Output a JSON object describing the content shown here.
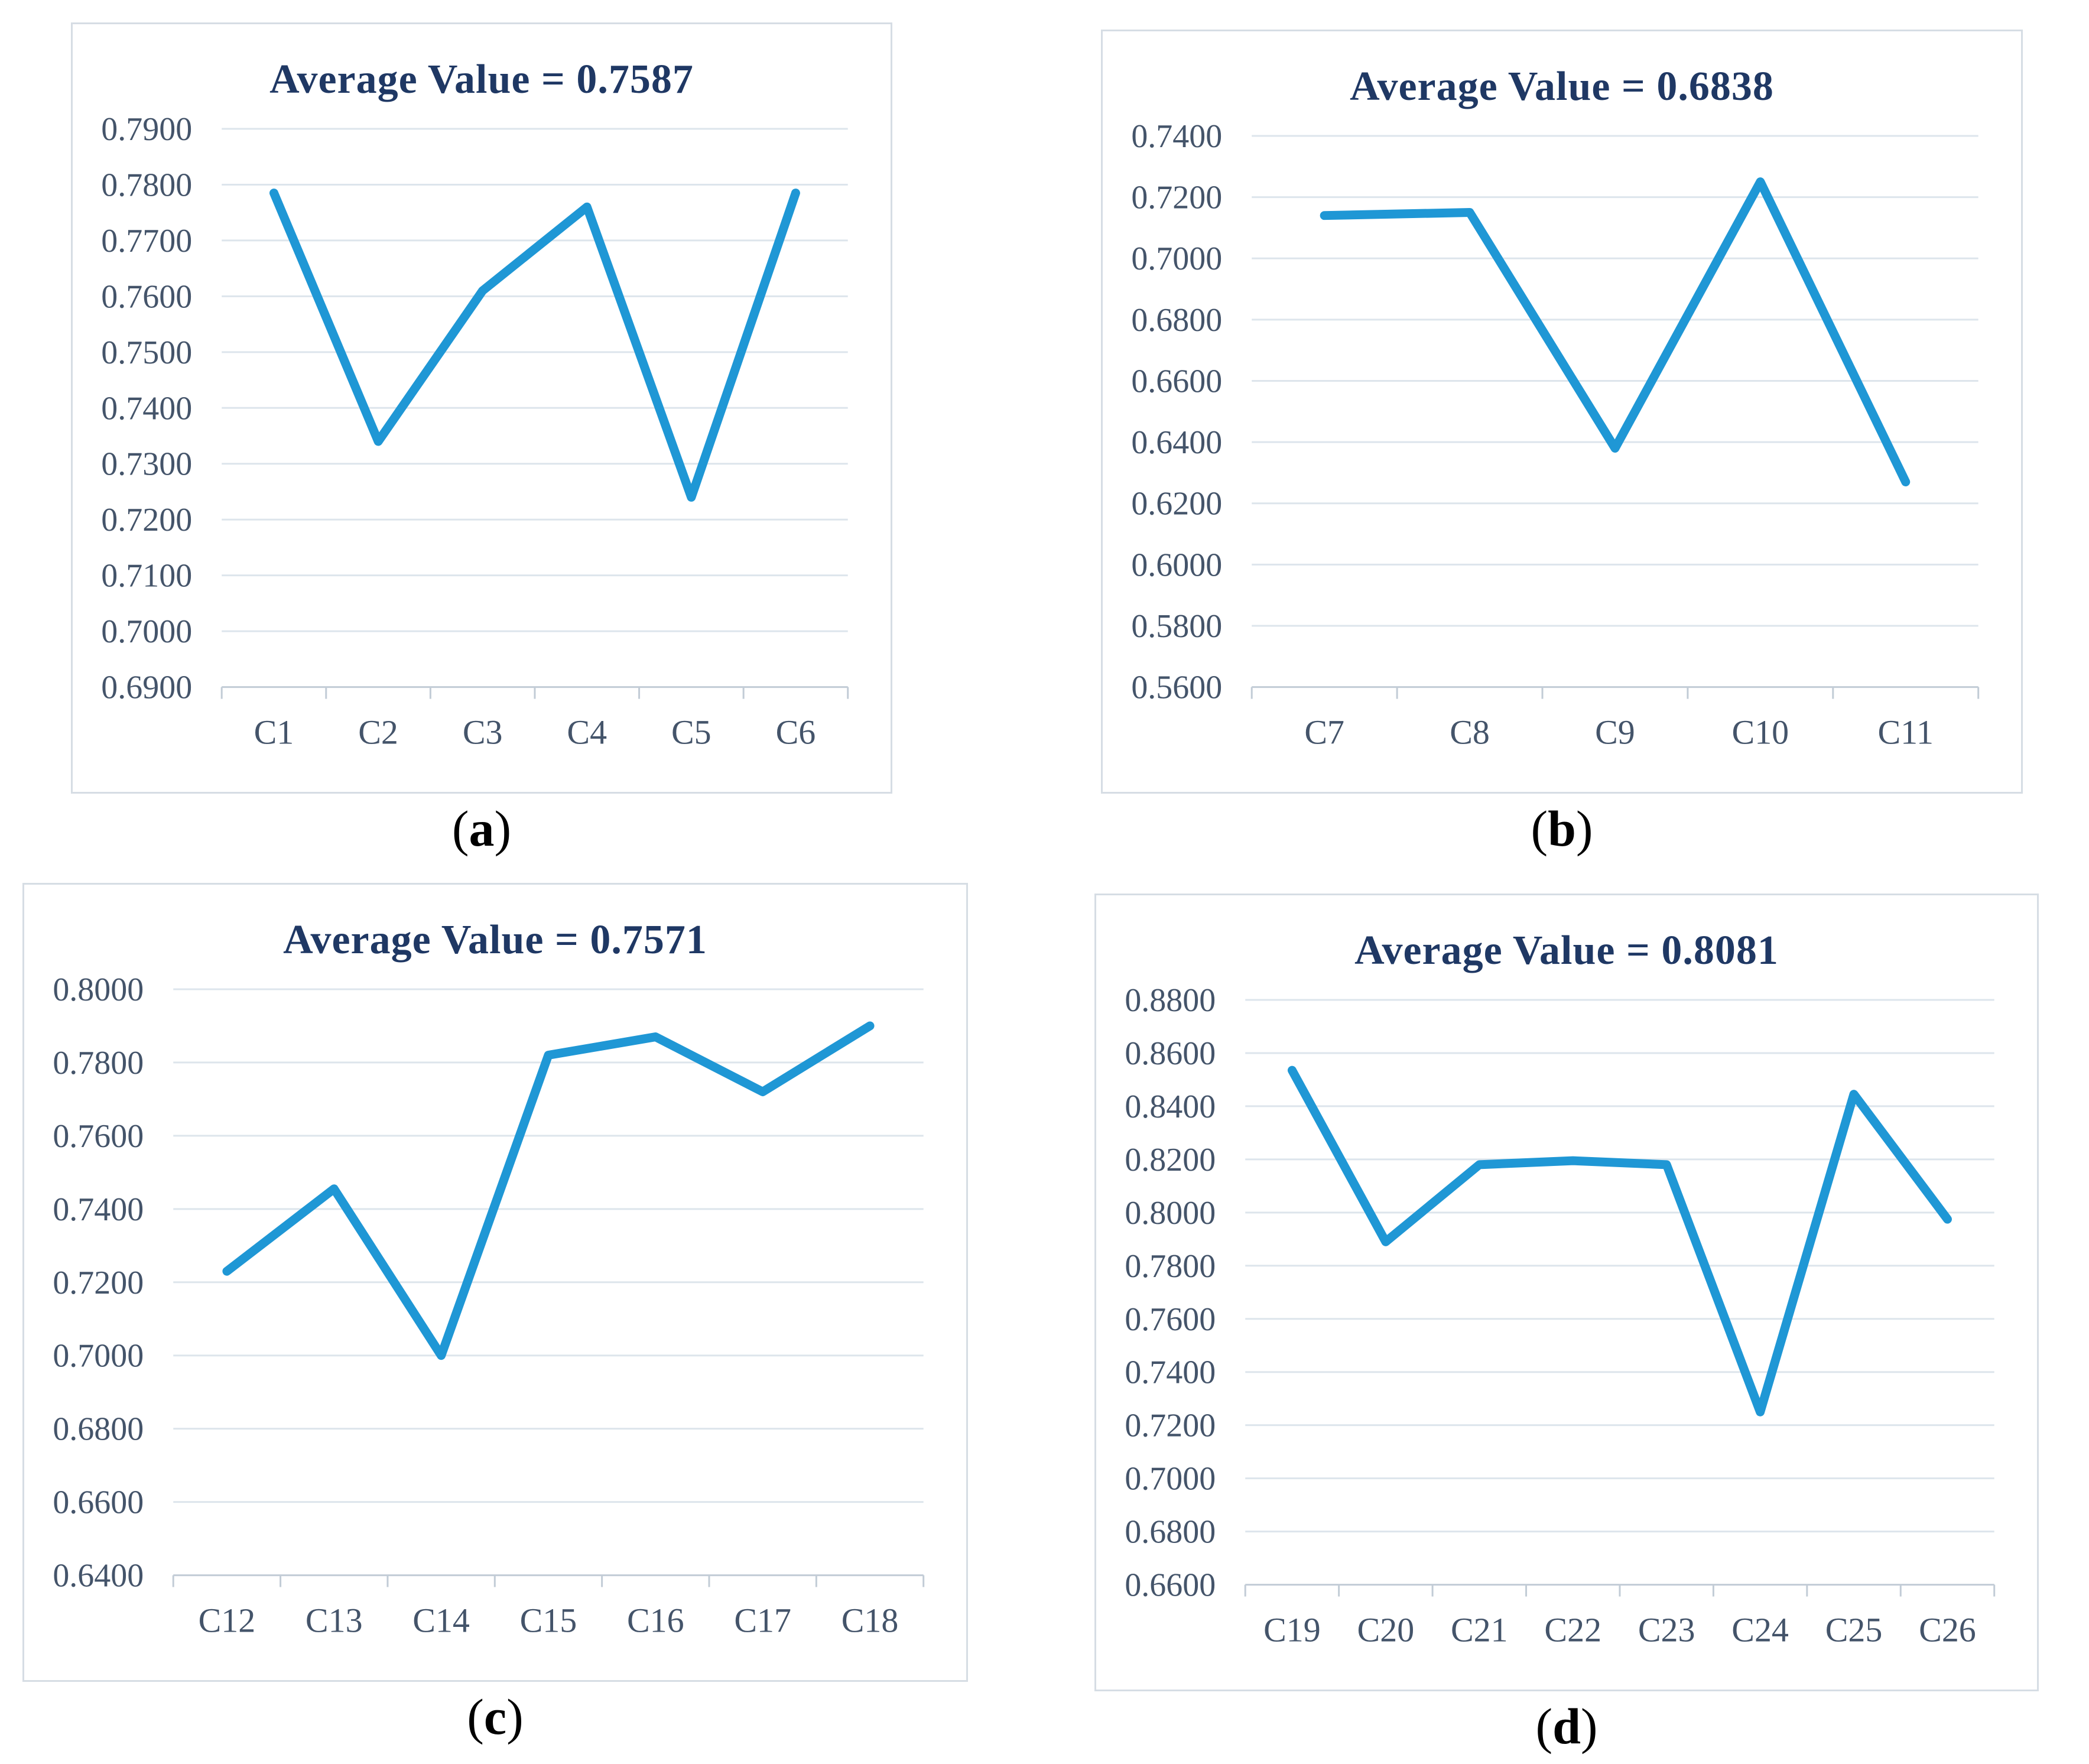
{
  "colors": {
    "line": "#1f97d5",
    "grid": "#dde5ec",
    "axis": "#c2ccd6",
    "tick_label": "#44546a",
    "title": "#1f3864",
    "panel_border": "#d6dde4",
    "caption": "#000000",
    "background": "#ffffff"
  },
  "chart_data": [
    {
      "type": "line",
      "title": "Average Value = 0.7587",
      "average": 0.7587,
      "categories": [
        "C1",
        "C2",
        "C3",
        "C4",
        "C5",
        "C6"
      ],
      "values": [
        0.7785,
        0.734,
        0.761,
        0.776,
        0.724,
        0.7785
      ],
      "xlabel": "",
      "ylabel": "",
      "ylim": [
        0.69,
        0.79
      ],
      "ytick_step": 0.01,
      "ytick_decimals": 4,
      "grid": true,
      "legend_position": "none",
      "caption": {
        "open": "(",
        "letter": "a",
        "close": ")"
      }
    },
    {
      "type": "line",
      "title": "Average Value = 0.6838",
      "average": 0.6838,
      "categories": [
        "C7",
        "C8",
        "C9",
        "C10",
        "C11"
      ],
      "values": [
        0.714,
        0.715,
        0.638,
        0.725,
        0.627
      ],
      "xlabel": "",
      "ylabel": "",
      "ylim": [
        0.56,
        0.74
      ],
      "ytick_step": 0.02,
      "ytick_decimals": 4,
      "grid": true,
      "legend_position": "none",
      "caption": {
        "open": "(",
        "letter": "b",
        "close": ")"
      }
    },
    {
      "type": "line",
      "title": "Average Value = 0.7571",
      "average": 0.7571,
      "categories": [
        "C12",
        "C13",
        "C14",
        "C15",
        "C16",
        "C17",
        "C18"
      ],
      "values": [
        0.723,
        0.7455,
        0.7,
        0.782,
        0.787,
        0.772,
        0.79
      ],
      "xlabel": "",
      "ylabel": "",
      "ylim": [
        0.64,
        0.8
      ],
      "ytick_step": 0.02,
      "ytick_decimals": 4,
      "grid": true,
      "legend_position": "none",
      "caption": {
        "open": "(",
        "letter": "c",
        "close": ")"
      }
    },
    {
      "type": "line",
      "title": "Average Value = 0.8081",
      "average": 0.8081,
      "categories": [
        "C19",
        "C20",
        "C21",
        "C22",
        "C23",
        "C24",
        "C25",
        "C26"
      ],
      "values": [
        0.8535,
        0.789,
        0.818,
        0.8195,
        0.818,
        0.725,
        0.8445,
        0.7975
      ],
      "xlabel": "",
      "ylabel": "",
      "ylim": [
        0.66,
        0.88
      ],
      "ytick_step": 0.02,
      "ytick_decimals": 4,
      "grid": true,
      "legend_position": "none",
      "caption": {
        "open": "(",
        "letter": "d",
        "close": ")"
      }
    }
  ]
}
